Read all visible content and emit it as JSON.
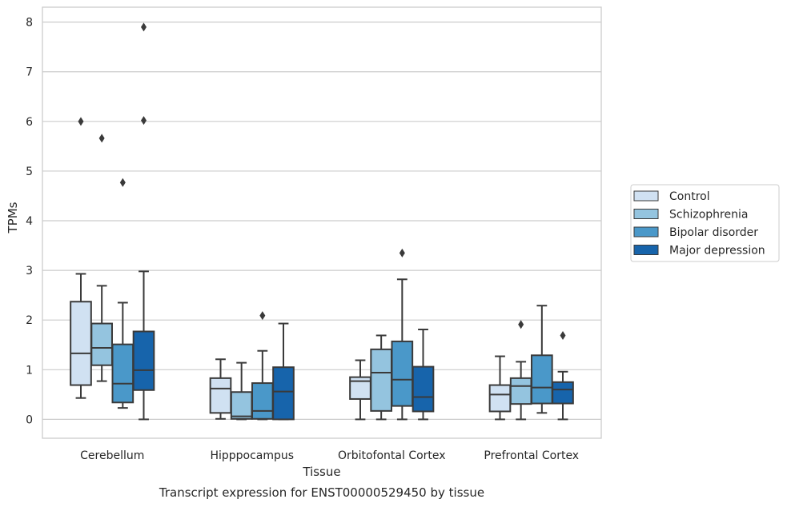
{
  "chart_data": {
    "type": "boxplot",
    "title": "",
    "caption": "Transcript expression for ENST00000529450 by tissue",
    "xlabel": "Tissue",
    "ylabel": "TPMs",
    "ylim": [
      -0.38,
      8.3
    ],
    "yticks": [
      0,
      1,
      2,
      3,
      4,
      5,
      6,
      7,
      8
    ],
    "grid": "horizontal",
    "legend_position": "right",
    "categories": [
      "Cerebellum",
      "Hipppocampus",
      "Orbitofontal Cortex",
      "Prefrontal Cortex"
    ],
    "series": [
      {
        "name": "Control",
        "color": "#d0e1f2",
        "boxes": [
          {
            "whisker_low": 0.43,
            "q1": 0.69,
            "median": 1.33,
            "q3": 2.37,
            "whisker_high": 2.93,
            "outliers": [
              6.0
            ]
          },
          {
            "whisker_low": 0.01,
            "q1": 0.13,
            "median": 0.62,
            "q3": 0.83,
            "whisker_high": 1.21,
            "outliers": []
          },
          {
            "whisker_low": 0.0,
            "q1": 0.41,
            "median": 0.77,
            "q3": 0.85,
            "whisker_high": 1.19,
            "outliers": []
          },
          {
            "whisker_low": 0.0,
            "q1": 0.16,
            "median": 0.5,
            "q3": 0.69,
            "whisker_high": 1.27,
            "outliers": []
          }
        ]
      },
      {
        "name": "Schizophrenia",
        "color": "#94c4df",
        "boxes": [
          {
            "whisker_low": 0.77,
            "q1": 1.09,
            "median": 1.44,
            "q3": 1.93,
            "whisker_high": 2.69,
            "outliers": [
              5.66
            ]
          },
          {
            "whisker_low": 0.0,
            "q1": 0.01,
            "median": 0.06,
            "q3": 0.55,
            "whisker_high": 1.14,
            "outliers": []
          },
          {
            "whisker_low": 0.0,
            "q1": 0.17,
            "median": 0.94,
            "q3": 1.41,
            "whisker_high": 1.69,
            "outliers": []
          },
          {
            "whisker_low": 0.0,
            "q1": 0.31,
            "median": 0.67,
            "q3": 0.83,
            "whisker_high": 1.16,
            "outliers": [
              1.91
            ]
          }
        ]
      },
      {
        "name": "Bipolar disorder",
        "color": "#4a98c9",
        "boxes": [
          {
            "whisker_low": 0.23,
            "q1": 0.34,
            "median": 0.72,
            "q3": 1.51,
            "whisker_high": 2.35,
            "outliers": [
              4.77
            ]
          },
          {
            "whisker_low": 0.0,
            "q1": 0.01,
            "median": 0.17,
            "q3": 0.73,
            "whisker_high": 1.38,
            "outliers": [
              2.09
            ]
          },
          {
            "whisker_low": 0.0,
            "q1": 0.27,
            "median": 0.8,
            "q3": 1.57,
            "whisker_high": 2.82,
            "outliers": [
              3.35
            ]
          },
          {
            "whisker_low": 0.13,
            "q1": 0.32,
            "median": 0.64,
            "q3": 1.29,
            "whisker_high": 2.29,
            "outliers": []
          }
        ]
      },
      {
        "name": "Major depression",
        "color": "#1764ab",
        "boxes": [
          {
            "whisker_low": 0.0,
            "q1": 0.59,
            "median": 0.99,
            "q3": 1.77,
            "whisker_high": 2.98,
            "outliers": [
              6.02,
              7.9
            ]
          },
          {
            "whisker_low": 0.0,
            "q1": 0.0,
            "median": 0.56,
            "q3": 1.05,
            "whisker_high": 1.93,
            "outliers": []
          },
          {
            "whisker_low": 0.0,
            "q1": 0.16,
            "median": 0.45,
            "q3": 1.06,
            "whisker_high": 1.81,
            "outliers": []
          },
          {
            "whisker_low": 0.0,
            "q1": 0.32,
            "median": 0.6,
            "q3": 0.75,
            "whisker_high": 0.96,
            "outliers": [
              1.69
            ]
          }
        ]
      }
    ]
  },
  "style": {
    "grid_color": "#cccccc",
    "spine_color": "#cccccc",
    "box_edge_color": "#3a3a3a"
  }
}
